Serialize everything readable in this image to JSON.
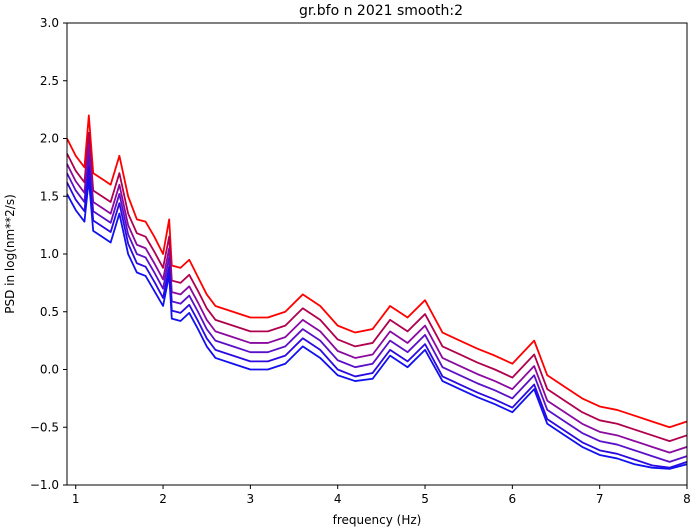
{
  "chart_data": {
    "type": "line",
    "title": "gr.bfo n 2021 smooth:2",
    "xlabel": "frequency (Hz)",
    "ylabel": "PSD in log(nm**2/s)",
    "xlim": [
      0.9,
      8.0
    ],
    "ylim": [
      -1.0,
      3.0
    ],
    "xticks": [
      1,
      2,
      3,
      4,
      5,
      6,
      7,
      8
    ],
    "yticks": [
      -1.0,
      -0.5,
      0.0,
      0.5,
      1.0,
      1.5,
      2.0,
      2.5,
      3.0
    ],
    "ytick_labels": [
      "−1.0",
      "−0.5",
      "0.0",
      "0.5",
      "1.0",
      "1.5",
      "2.0",
      "2.5",
      "3.0"
    ],
    "grid": false,
    "x": [
      0.9,
      1.0,
      1.1,
      1.15,
      1.2,
      1.3,
      1.4,
      1.5,
      1.6,
      1.7,
      1.8,
      1.9,
      2.0,
      2.07,
      2.1,
      2.2,
      2.3,
      2.4,
      2.5,
      2.6,
      2.8,
      3.0,
      3.2,
      3.4,
      3.6,
      3.8,
      4.0,
      4.2,
      4.4,
      4.6,
      4.8,
      5.0,
      5.2,
      5.4,
      5.6,
      5.8,
      6.0,
      6.25,
      6.4,
      6.6,
      6.8,
      7.0,
      7.2,
      7.4,
      7.6,
      7.8,
      8.0
    ],
    "series": [
      {
        "color": "#ff0000",
        "values": [
          2.0,
          1.85,
          1.75,
          2.2,
          1.7,
          1.65,
          1.6,
          1.85,
          1.5,
          1.3,
          1.28,
          1.15,
          1.0,
          1.3,
          0.9,
          0.88,
          0.95,
          0.8,
          0.65,
          0.55,
          0.5,
          0.45,
          0.45,
          0.5,
          0.65,
          0.55,
          0.38,
          0.32,
          0.35,
          0.55,
          0.45,
          0.6,
          0.32,
          0.25,
          0.18,
          0.12,
          0.05,
          0.25,
          -0.05,
          -0.15,
          -0.25,
          -0.32,
          -0.35,
          -0.4,
          -0.45,
          -0.5,
          -0.45
        ]
      },
      {
        "color": "#b0004e",
        "values": [
          1.87,
          1.72,
          1.62,
          2.05,
          1.55,
          1.5,
          1.45,
          1.7,
          1.35,
          1.18,
          1.15,
          1.02,
          0.88,
          1.15,
          0.77,
          0.75,
          0.82,
          0.68,
          0.53,
          0.43,
          0.38,
          0.33,
          0.33,
          0.38,
          0.53,
          0.43,
          0.26,
          0.2,
          0.23,
          0.43,
          0.33,
          0.48,
          0.2,
          0.13,
          0.06,
          0.0,
          -0.07,
          0.13,
          -0.17,
          -0.27,
          -0.37,
          -0.44,
          -0.47,
          -0.52,
          -0.57,
          -0.62,
          -0.57
        ]
      },
      {
        "color": "#8a0aa0",
        "values": [
          1.78,
          1.63,
          1.53,
          1.95,
          1.45,
          1.4,
          1.35,
          1.6,
          1.25,
          1.08,
          1.05,
          0.92,
          0.78,
          1.05,
          0.67,
          0.65,
          0.72,
          0.58,
          0.43,
          0.33,
          0.28,
          0.23,
          0.23,
          0.28,
          0.43,
          0.33,
          0.16,
          0.1,
          0.13,
          0.33,
          0.23,
          0.38,
          0.1,
          0.03,
          -0.04,
          -0.1,
          -0.17,
          0.03,
          -0.27,
          -0.37,
          -0.47,
          -0.54,
          -0.57,
          -0.62,
          -0.67,
          -0.72,
          -0.67
        ]
      },
      {
        "color": "#5a10c8",
        "values": [
          1.7,
          1.55,
          1.45,
          1.85,
          1.37,
          1.32,
          1.27,
          1.52,
          1.17,
          1.0,
          0.97,
          0.84,
          0.7,
          0.97,
          0.59,
          0.57,
          0.64,
          0.5,
          0.35,
          0.25,
          0.2,
          0.15,
          0.15,
          0.2,
          0.35,
          0.25,
          0.08,
          0.02,
          0.05,
          0.25,
          0.15,
          0.3,
          0.02,
          -0.05,
          -0.12,
          -0.18,
          -0.25,
          -0.05,
          -0.35,
          -0.45,
          -0.55,
          -0.62,
          -0.65,
          -0.7,
          -0.75,
          -0.8,
          -0.75
        ]
      },
      {
        "color": "#2a0ae0",
        "values": [
          1.62,
          1.47,
          1.37,
          1.75,
          1.29,
          1.24,
          1.19,
          1.44,
          1.09,
          0.92,
          0.89,
          0.76,
          0.62,
          0.89,
          0.51,
          0.49,
          0.56,
          0.42,
          0.27,
          0.17,
          0.12,
          0.07,
          0.07,
          0.12,
          0.27,
          0.17,
          0.0,
          -0.06,
          -0.03,
          0.17,
          0.07,
          0.22,
          -0.06,
          -0.13,
          -0.2,
          -0.26,
          -0.33,
          -0.13,
          -0.43,
          -0.53,
          -0.63,
          -0.7,
          -0.73,
          -0.78,
          -0.83,
          -0.85,
          -0.8
        ]
      },
      {
        "color": "#1010f0",
        "values": [
          1.52,
          1.38,
          1.28,
          1.65,
          1.2,
          1.15,
          1.1,
          1.35,
          1.0,
          0.84,
          0.81,
          0.68,
          0.55,
          0.82,
          0.44,
          0.42,
          0.49,
          0.35,
          0.2,
          0.1,
          0.05,
          0.0,
          0.0,
          0.05,
          0.2,
          0.1,
          -0.05,
          -0.1,
          -0.08,
          0.12,
          0.02,
          0.17,
          -0.1,
          -0.17,
          -0.24,
          -0.3,
          -0.37,
          -0.17,
          -0.47,
          -0.57,
          -0.67,
          -0.74,
          -0.77,
          -0.82,
          -0.85,
          -0.86,
          -0.82
        ]
      }
    ]
  }
}
